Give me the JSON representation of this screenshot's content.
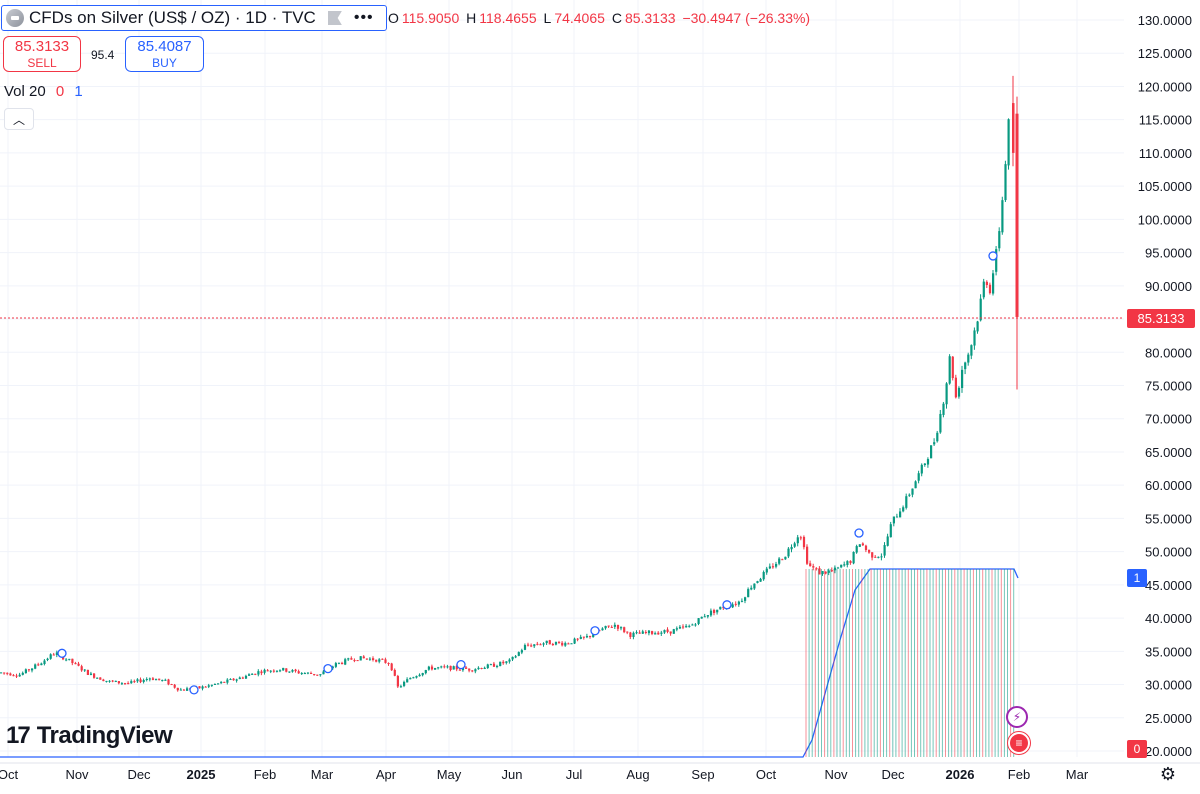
{
  "header": {
    "symbol_title": "CFDs on Silver (US$ / OZ) · 1D · TVC",
    "ohlc": {
      "o_label": "O",
      "o_value": "115.9050",
      "h_label": "H",
      "h_value": "118.4655",
      "l_label": "L",
      "l_value": "74.4065",
      "c_label": "C",
      "c_value": "85.3133",
      "change": "−30.4947 (−26.33%)"
    }
  },
  "trade": {
    "sell_price": "85.3133",
    "sell_label": "SELL",
    "spread": "95.4",
    "buy_price": "85.4087",
    "buy_label": "BUY"
  },
  "volume_legend": {
    "label": "Vol",
    "length": "20",
    "v0": "0",
    "v1": "1"
  },
  "branding": {
    "name": "TradingView"
  },
  "price_tag": "85.3133",
  "volume_tag": "1",
  "volume_tag_zero": "0",
  "icons": {
    "collapse": "chevron-up-icon",
    "bolt": "lightning-icon",
    "flag": "us-flag-icon",
    "settings": "gear-icon",
    "more": "ellipsis-icon"
  },
  "colors": {
    "up": "#089981",
    "down": "#f23645",
    "accent": "#2962ff",
    "grid": "#f0f3fa"
  },
  "chart_data": {
    "type": "candlestick",
    "title": "CFDs on Silver (US$ / OZ) · 1D · TVC",
    "y_axis_ticks": [
      "130.0000",
      "125.0000",
      "120.0000",
      "115.0000",
      "110.0000",
      "105.0000",
      "100.0000",
      "95.0000",
      "90.0000",
      "85.0000",
      "80.0000",
      "75.0000",
      "70.0000",
      "65.0000",
      "60.0000",
      "55.0000",
      "50.0000",
      "45.0000",
      "40.0000",
      "35.0000",
      "30.0000",
      "25.0000",
      "20.0000"
    ],
    "ylim": [
      20,
      130
    ],
    "x_axis_ticks": [
      "Oct",
      "Nov",
      "Dec",
      "2025",
      "Feb",
      "Mar",
      "Apr",
      "May",
      "Jun",
      "Jul",
      "Aug",
      "Sep",
      "Oct",
      "Nov",
      "Dec",
      "2026",
      "Feb",
      "Mar"
    ],
    "x_axis_bold": [
      "2025",
      "2026"
    ],
    "last_price": 85.3133,
    "monthly_closes": [
      {
        "month": "Oct 2024",
        "close": 32.0
      },
      {
        "month": "Nov 2024",
        "close": 30.5
      },
      {
        "month": "Dec 2024",
        "close": 29.0
      },
      {
        "month": "Jan 2025",
        "close": 31.0
      },
      {
        "month": "Feb 2025",
        "close": 32.0
      },
      {
        "month": "Mar 2025",
        "close": 34.0
      },
      {
        "month": "Apr 2025",
        "close": 32.5
      },
      {
        "month": "May 2025",
        "close": 33.0
      },
      {
        "month": "Jun 2025",
        "close": 36.0
      },
      {
        "month": "Jul 2025",
        "close": 37.5
      },
      {
        "month": "Aug 2025",
        "close": 39.0
      },
      {
        "month": "Sep 2025",
        "close": 46.5
      },
      {
        "month": "Oct 2025",
        "close": 48.5
      },
      {
        "month": "Nov 2025",
        "close": 56.0
      },
      {
        "month": "Dec 2025",
        "close": 72.0
      },
      {
        "month": "Jan 2026",
        "close": 85.3
      }
    ]
  }
}
